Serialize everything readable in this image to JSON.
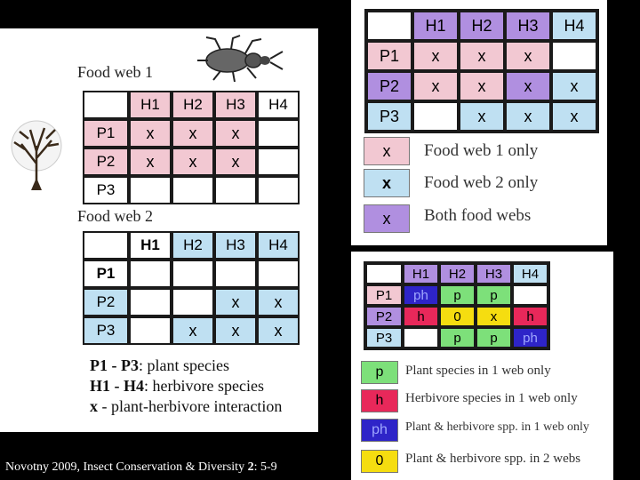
{
  "colors": {
    "pink": "#f2c8d2",
    "blue": "#bfe0f2",
    "purple": "#b08fe0",
    "green": "#7de07a",
    "red": "#e8285a",
    "darkblue": "#2e24c8",
    "yellow": "#f5dd10"
  },
  "left": {
    "fw1_caption": "Food web 1",
    "fw2_caption": "Food web 2",
    "fw1": {
      "cols": [
        "H1",
        "H2",
        "H3",
        "H4"
      ],
      "rows": [
        {
          "label": "P1",
          "cells": [
            "x",
            "x",
            "x",
            ""
          ]
        },
        {
          "label": "P2",
          "cells": [
            "x",
            "x",
            "x",
            ""
          ]
        },
        {
          "label": "P3",
          "cells": [
            "",
            "",
            "",
            ""
          ]
        }
      ]
    },
    "fw2": {
      "cols": [
        "H1",
        "H2",
        "H3",
        "H4"
      ],
      "rows": [
        {
          "label": "P1",
          "cells": [
            "",
            "",
            "",
            ""
          ]
        },
        {
          "label": "P2",
          "cells": [
            "",
            "",
            "x",
            "x"
          ]
        },
        {
          "label": "P3",
          "cells": [
            "",
            "x",
            "x",
            "x"
          ]
        }
      ]
    },
    "notes": [
      {
        "bold": "P1 - P3",
        "rest": ": plant species"
      },
      {
        "bold": "H1 - H4",
        "rest": ": herbivore species"
      },
      {
        "bold": "x",
        "rest": " - plant-herbivore interaction"
      }
    ]
  },
  "combined": {
    "cols": [
      "H1",
      "H2",
      "H3",
      "H4"
    ],
    "rows": [
      {
        "label": "P1",
        "cells": [
          "x",
          "x",
          "x",
          ""
        ]
      },
      {
        "label": "P2",
        "cells": [
          "x",
          "x",
          "x",
          "x"
        ]
      },
      {
        "label": "P3",
        "cells": [
          "",
          "x",
          "x",
          "x"
        ]
      }
    ],
    "legend": [
      {
        "symbol": "x",
        "text": "Food web 1 only"
      },
      {
        "symbol": "x",
        "text": "Food web 2 only"
      },
      {
        "symbol": "x",
        "text": "Both food webs"
      }
    ]
  },
  "species": {
    "cols": [
      "H1",
      "H2",
      "H3",
      "H4"
    ],
    "rows": [
      {
        "label": "P1",
        "cells": [
          "ph",
          "p",
          "p",
          ""
        ]
      },
      {
        "label": "P2",
        "cells": [
          "h",
          "0",
          "x",
          "h"
        ]
      },
      {
        "label": "P3",
        "cells": [
          "",
          "p",
          "p",
          "ph"
        ]
      }
    ],
    "legend": [
      {
        "symbol": "p",
        "text": "Plant species in 1 web only"
      },
      {
        "symbol": "h",
        "text": "Herbivore species in 1 web only"
      },
      {
        "symbol": "ph",
        "text": "Plant & herbivore spp. in 1 web only"
      },
      {
        "symbol": "0",
        "text": "Plant & herbivore spp. in 2 webs"
      }
    ]
  },
  "citation": {
    "pre": "Novotny 2009, Insect Conservation & Diversity ",
    "vol": "2",
    "post": ": 5-9"
  }
}
